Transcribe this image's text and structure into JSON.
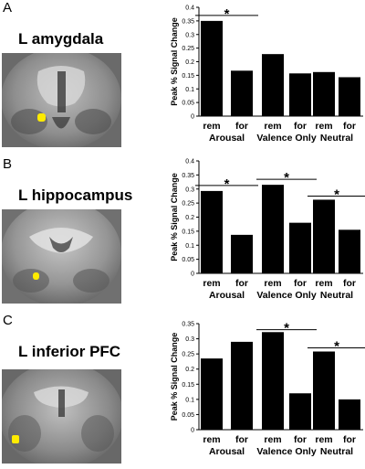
{
  "panels": [
    {
      "letter": "A",
      "region": "L amygdala"
    },
    {
      "letter": "B",
      "region": "L hippocampus"
    },
    {
      "letter": "C",
      "region": "L inferior PFC"
    }
  ],
  "chart_data": [
    {
      "type": "bar",
      "ylabel": "Peak % Signal Change",
      "ylim": [
        0,
        0.4
      ],
      "yticks": [
        "0",
        "0.05",
        "0.1",
        "0.15",
        "0.2",
        "0.25",
        "0.3",
        "0.35",
        "0.4"
      ],
      "bar_labels": [
        "rem",
        "for",
        "rem",
        "for",
        "rem",
        "for"
      ],
      "groups": [
        "Arousal",
        "Valence Only",
        "Neutral"
      ],
      "values": [
        0.35,
        0.167,
        0.228,
        0.157,
        0.162,
        0.143
      ],
      "significance": [
        {
          "from_bar": 0,
          "to_bar": 1,
          "label": "*"
        }
      ],
      "grid": false
    },
    {
      "type": "bar",
      "ylabel": "Peak % Signal Change",
      "ylim": [
        0,
        0.4
      ],
      "yticks": [
        "0",
        "0.05",
        "0.1",
        "0.15",
        "0.2",
        "0.25",
        "0.3",
        "0.35",
        "0.4"
      ],
      "bar_labels": [
        "rem",
        "for",
        "rem",
        "for",
        "rem",
        "for"
      ],
      "groups": [
        "Arousal",
        "Valence Only",
        "Neutral"
      ],
      "values": [
        0.293,
        0.137,
        0.315,
        0.18,
        0.262,
        0.155
      ],
      "significance": [
        {
          "from_bar": 0,
          "to_bar": 1,
          "label": "*"
        },
        {
          "from_bar": 2,
          "to_bar": 3,
          "label": "*"
        },
        {
          "from_bar": 4,
          "to_bar": 5,
          "label": "*"
        }
      ],
      "grid": false
    },
    {
      "type": "bar",
      "ylabel": "Peak % Signal Change",
      "ylim": [
        0,
        0.35
      ],
      "yticks": [
        "0",
        "0.05",
        "0.1",
        "0.15",
        "0.2",
        "0.25",
        "0.3",
        "0.35"
      ],
      "bar_labels": [
        "rem",
        "for",
        "rem",
        "for",
        "rem",
        "for"
      ],
      "groups": [
        "Arousal",
        "Valence Only",
        "Neutral"
      ],
      "values": [
        0.235,
        0.29,
        0.322,
        0.12,
        0.258,
        0.1
      ],
      "significance": [
        {
          "from_bar": 2,
          "to_bar": 3,
          "label": "*"
        },
        {
          "from_bar": 4,
          "to_bar": 5,
          "label": "*"
        }
      ],
      "grid": false
    }
  ]
}
